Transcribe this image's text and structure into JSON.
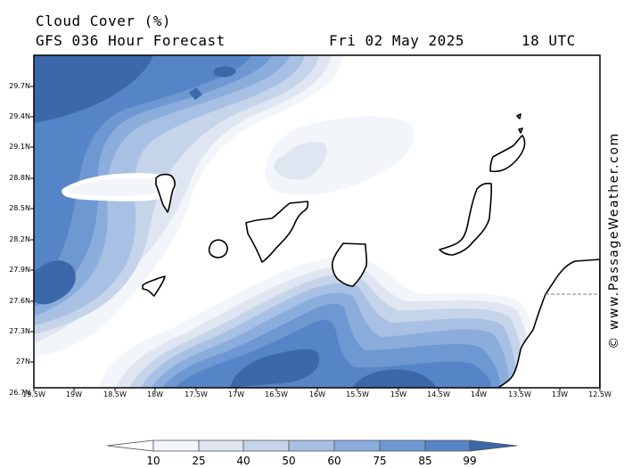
{
  "header": {
    "title": "Cloud Cover (%)",
    "model": "GFS 036 Hour Forecast",
    "date": "Fri 02 May 2025",
    "time": "18 UTC"
  },
  "map": {
    "lat_labels": [
      "29.7N",
      "29.4N",
      "29.1N",
      "28.8N",
      "28.5N",
      "28.2N",
      "27.9N",
      "27.6N",
      "27.3N",
      "27N",
      "26.7N"
    ],
    "lon_labels": [
      "19.5W",
      "19W",
      "18.5W",
      "18W",
      "17.5W",
      "17W",
      "16.5W",
      "16W",
      "15.5W",
      "15W",
      "14.5W",
      "14W",
      "13.5W",
      "13W",
      "12.5W"
    ],
    "palette": [
      "#f2f5fa",
      "#dfe6f2",
      "#c6d4ea",
      "#a8c0e3",
      "#8aaddc",
      "#6e98d2",
      "#5585c6",
      "#3a68a8"
    ],
    "land_color": "#ffffff",
    "coast_color": "#000000"
  },
  "colorbar": {
    "labels": [
      "10",
      "25",
      "40",
      "50",
      "60",
      "75",
      "85",
      "99"
    ]
  },
  "watermark": "© www.PassageWeather.com"
}
